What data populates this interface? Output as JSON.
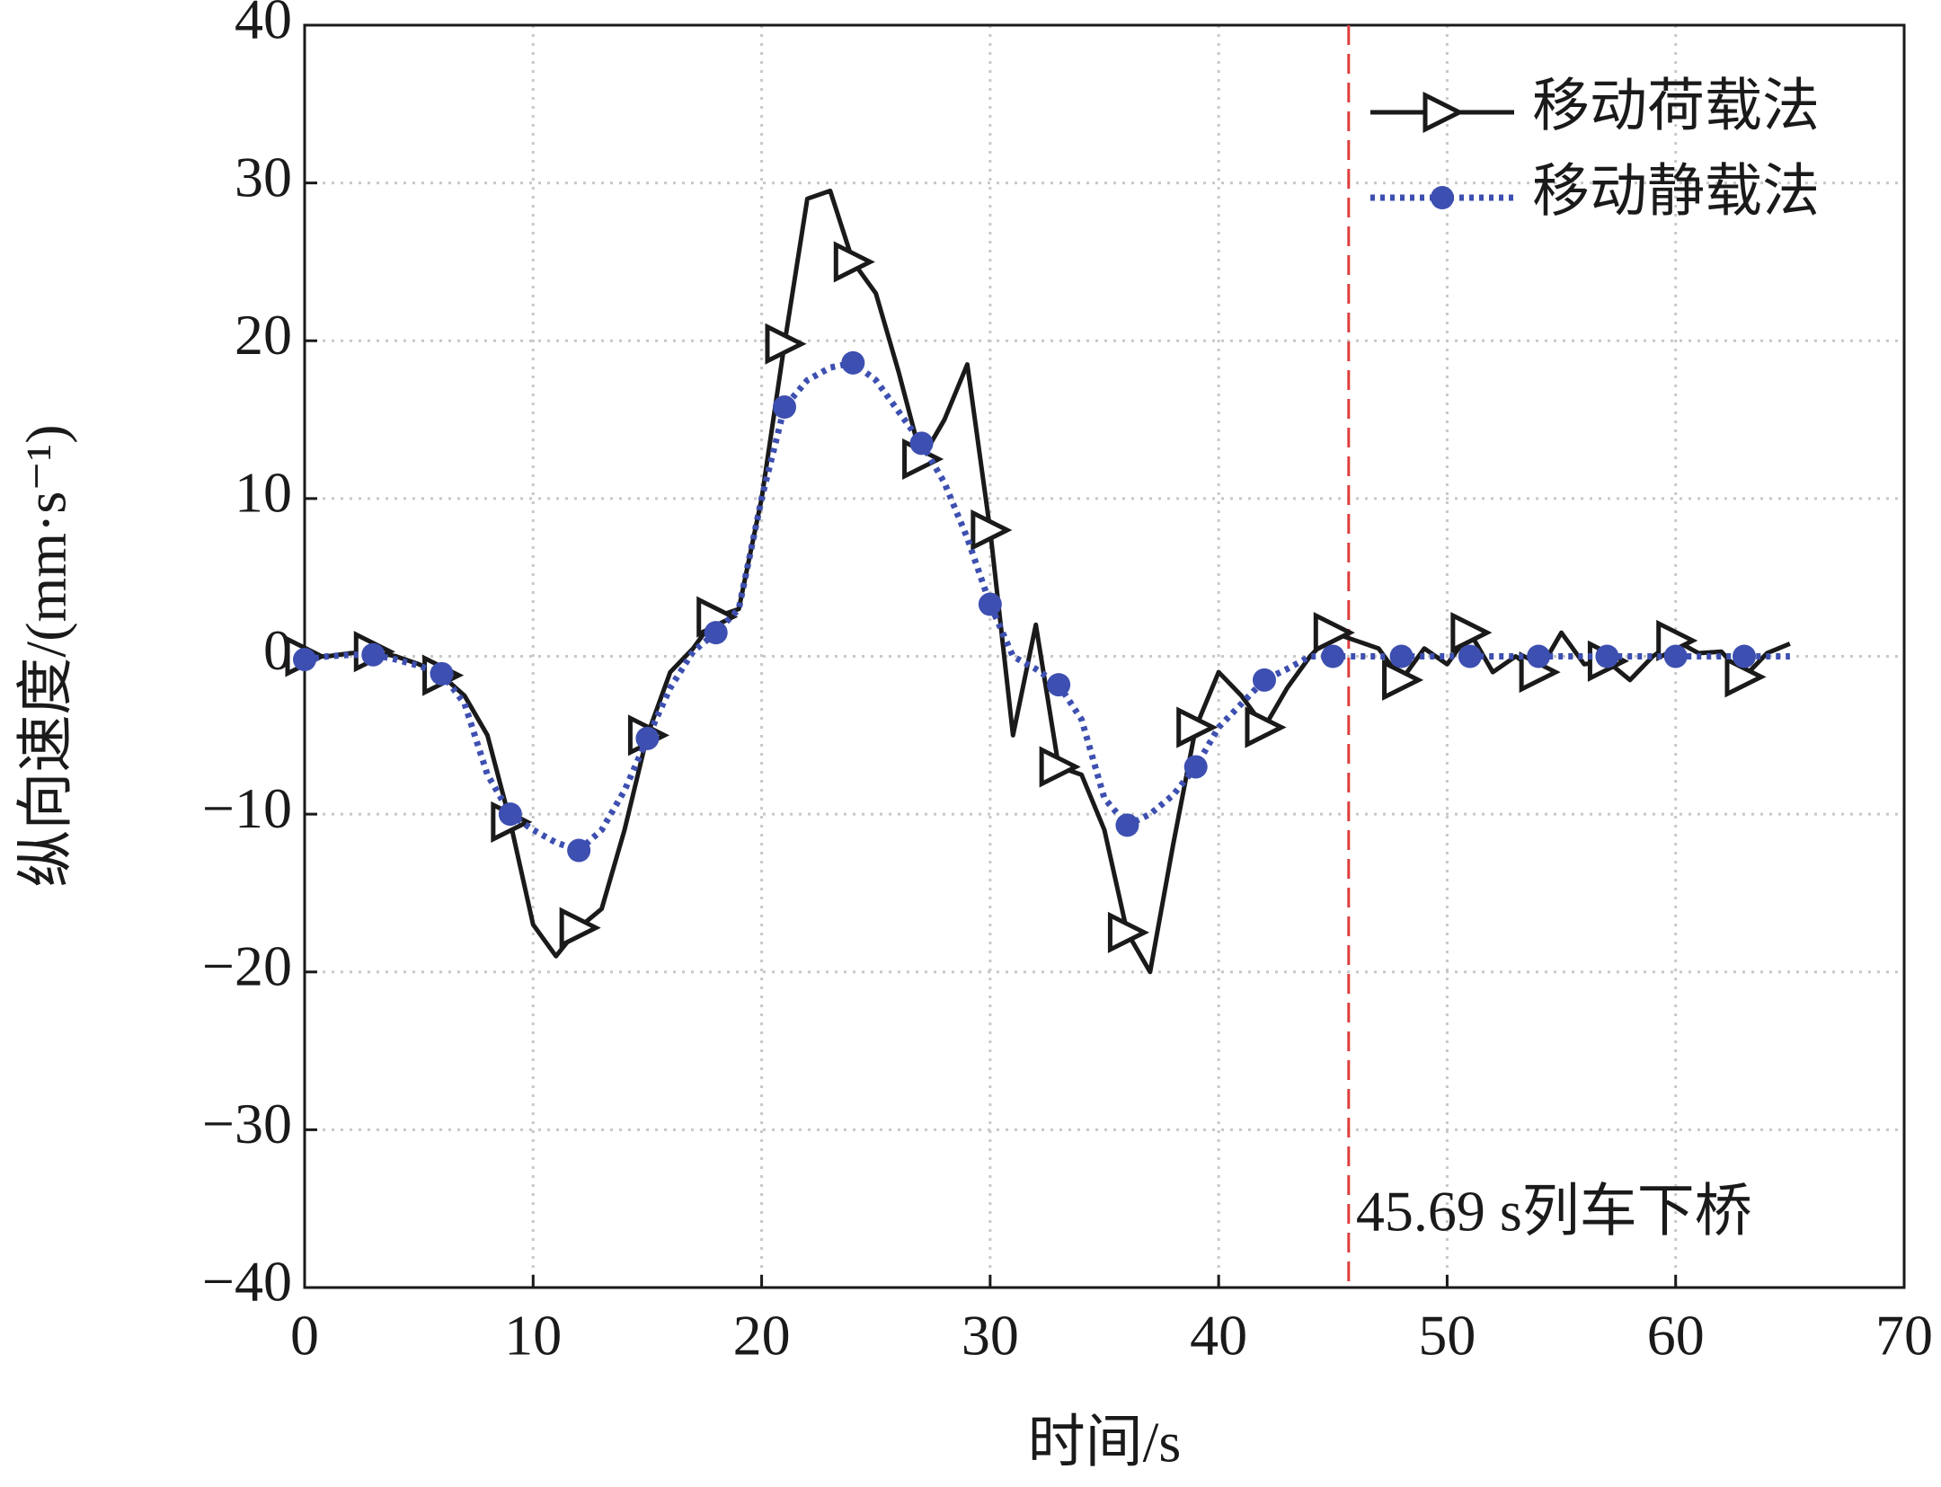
{
  "chart_data": {
    "type": "line",
    "xlabel": "时间/s",
    "ylabel": "纵向速度/(mm·s⁻¹)",
    "xlim": [
      0,
      70
    ],
    "xticks": [
      0,
      10,
      20,
      30,
      40,
      50,
      60,
      70
    ],
    "ylim": [
      -40,
      40
    ],
    "yticks": [
      {
        "value": -40,
        "label": "−40"
      },
      {
        "value": -30,
        "label": "−30"
      },
      {
        "value": -20,
        "label": "−20"
      },
      {
        "value": -10,
        "label": "−10"
      },
      0,
      10,
      20,
      30,
      40
    ],
    "grid": true,
    "legend": "upper right",
    "markevery": 3,
    "x": [
      0,
      1,
      2,
      3,
      4,
      5,
      6,
      7,
      8,
      9,
      10,
      11,
      12,
      13,
      14,
      15,
      16,
      17,
      18,
      19,
      20,
      21,
      22,
      23,
      24,
      25,
      26,
      27,
      28,
      29,
      30,
      31,
      32,
      33,
      34,
      35,
      36,
      37,
      38,
      39,
      40,
      41,
      42,
      43,
      44,
      45,
      46,
      47,
      48,
      49,
      50,
      51,
      52,
      53,
      54,
      55,
      56,
      57,
      58,
      59,
      60,
      61,
      62,
      63,
      64,
      65
    ],
    "series": [
      {
        "name": "移动荷载法",
        "color": "#1a1a1a",
        "linestyle": "solid",
        "marker": "triangle-right",
        "values": [
          0,
          0,
          0.2,
          0.3,
          0,
          -0.5,
          -1.2,
          -2.5,
          -5,
          -10.5,
          -17,
          -19,
          -17.2,
          -16,
          -11,
          -5,
          -1,
          0.5,
          2.5,
          3,
          10,
          19.8,
          29,
          29.5,
          25,
          23,
          18,
          12.5,
          15,
          18.5,
          8,
          -5,
          2,
          -7,
          -7.5,
          -11,
          -17.5,
          -20,
          -12,
          -4.5,
          -1,
          -2.5,
          -4.5,
          -2,
          0,
          1.5,
          1,
          0.5,
          -1.5,
          0.5,
          -0.5,
          1.5,
          -1,
          0,
          -1,
          1.5,
          -0.5,
          -0.3,
          -1.5,
          0,
          1,
          0.2,
          0.3,
          -1.3,
          0.2,
          0.8
        ]
      },
      {
        "name": "移动静载法",
        "color": "#3d4fb0",
        "linestyle": "dotted",
        "marker": "dot",
        "values": [
          -0.2,
          0,
          0.1,
          0.1,
          -0.2,
          -0.6,
          -1.1,
          -3,
          -7.5,
          -10,
          -11,
          -11.8,
          -12.3,
          -11,
          -8.5,
          -5.2,
          -2,
          0.3,
          1.5,
          3,
          10,
          15.8,
          17.5,
          18.3,
          18.6,
          17.5,
          15.5,
          13.5,
          11,
          7.5,
          3.3,
          0,
          -0.8,
          -1.8,
          -4,
          -9,
          -10.7,
          -10,
          -8.8,
          -7,
          -4.5,
          -3,
          -1.5,
          -0.8,
          0,
          0,
          0,
          0,
          0,
          0,
          0,
          0,
          0,
          0,
          0,
          0,
          0,
          0,
          0,
          0,
          0,
          0,
          0,
          0,
          0,
          0
        ]
      }
    ],
    "vline": {
      "x": 45.69,
      "label": "45.69 s列车下桥",
      "color": "#e03c3c"
    }
  }
}
